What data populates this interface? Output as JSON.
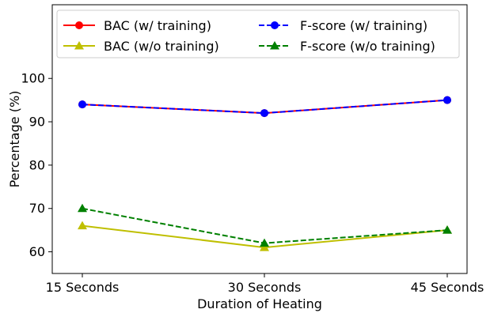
{
  "chart_data": {
    "type": "line",
    "title": "",
    "xlabel": "Duration of Heating",
    "ylabel": "Percentage (%)",
    "categories": [
      "15 Seconds",
      "30 Seconds",
      "45 Seconds"
    ],
    "ylim": [
      55,
      117
    ],
    "yticks": [
      60,
      70,
      80,
      90,
      100
    ],
    "grid": false,
    "legend_position": "top",
    "series": [
      {
        "name": "BAC (w/ training)",
        "values": [
          94,
          92,
          95
        ],
        "color": "#ff0000",
        "marker": "circle",
        "linestyle": "solid"
      },
      {
        "name": "BAC (w/o training)",
        "values": [
          66,
          61,
          65
        ],
        "color": "#bfbf00",
        "marker": "triangle",
        "linestyle": "solid"
      },
      {
        "name": "F-score (w/ training)",
        "values": [
          94,
          92,
          95
        ],
        "color": "#0000ff",
        "marker": "circle",
        "linestyle": "dashed"
      },
      {
        "name": "F-score (w/o training)",
        "values": [
          70,
          62,
          65
        ],
        "color": "#008000",
        "marker": "triangle",
        "linestyle": "dashed"
      }
    ]
  }
}
